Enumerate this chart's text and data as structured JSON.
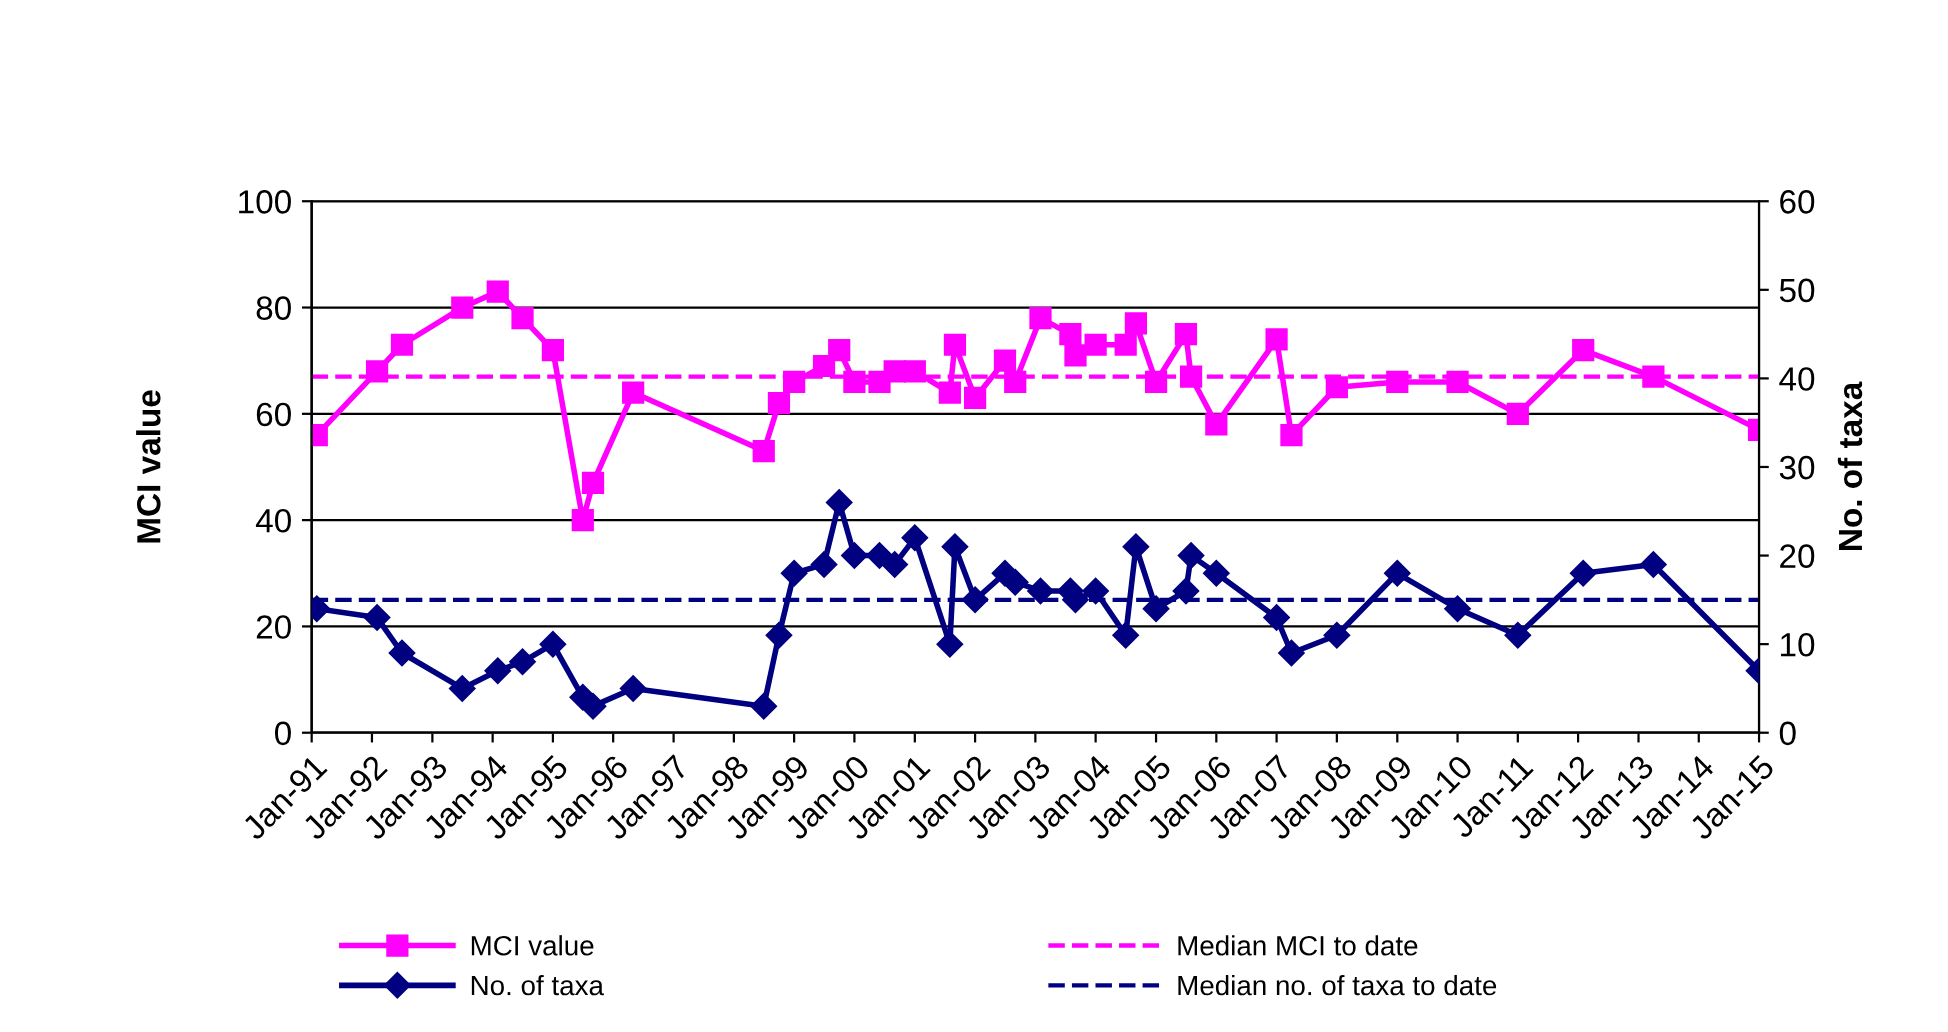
{
  "chart_data": {
    "type": "line",
    "ylabel": "MCI value",
    "y2label": "No. of taxa",
    "x": [
      "1991-02",
      "1992-02",
      "1992-07",
      "1993-07",
      "1994-02",
      "1994-07",
      "1995-01",
      "1995-07",
      "1995-09",
      "1996-05",
      "1998-07",
      "1998-10",
      "1999-01",
      "1999-07",
      "1999-10",
      "2000-01",
      "2000-06",
      "2000-09",
      "2001-01",
      "2001-08",
      "2001-09",
      "2002-01",
      "2002-07",
      "2002-09",
      "2003-02",
      "2003-08",
      "2003-09",
      "2004-01",
      "2004-07",
      "2004-09",
      "2005-01",
      "2005-07",
      "2005-08",
      "2006-01",
      "2007-01",
      "2007-04",
      "2008-01",
      "2009-01",
      "2010-01",
      "2011-01",
      "2012-02",
      "2013-04",
      "2015-01"
    ],
    "series": [
      {
        "name": "MCI value",
        "color": "#ff00ff",
        "marker": "square",
        "values": [
          56,
          68,
          73,
          80,
          83,
          78,
          72,
          40,
          47,
          64,
          53,
          62,
          66,
          69,
          72,
          66,
          66,
          68,
          68,
          64,
          73,
          63,
          70,
          66,
          78,
          75,
          71,
          73,
          73,
          77,
          66,
          75,
          67,
          58,
          74,
          56,
          65,
          66,
          66,
          60,
          72,
          67,
          57
        ]
      },
      {
        "name": "No. of taxa",
        "color": "#000080",
        "marker": "diamond",
        "axis": "y2",
        "values": [
          14,
          13,
          9,
          5,
          7,
          8,
          10,
          4,
          3,
          5,
          3,
          11,
          18,
          19,
          26,
          20,
          20,
          19,
          22,
          10,
          21,
          15,
          18,
          17,
          16,
          16,
          15,
          16,
          11,
          21,
          14,
          16,
          20,
          18,
          13,
          9,
          11,
          18,
          14,
          11,
          18,
          19,
          7
        ]
      }
    ],
    "ref_lines": [
      {
        "axis": "y",
        "value": 67,
        "label": "Median MCI to date",
        "color": "#ff00ff",
        "line_style": "dashed"
      },
      {
        "axis": "y2",
        "value": 15,
        "label": "Median no. of taxa to date",
        "color": "#000080",
        "line_style": "dashed"
      }
    ],
    "xlim": [
      "1991-01",
      "2015-01"
    ],
    "xticks": [
      {
        "value": "1991-01",
        "label": "Jan-91"
      },
      {
        "value": "1992-01",
        "label": "Jan-92"
      },
      {
        "value": "1993-01",
        "label": "Jan-93"
      },
      {
        "value": "1994-01",
        "label": "Jan-94"
      },
      {
        "value": "1995-01",
        "label": "Jan-95"
      },
      {
        "value": "1996-01",
        "label": "Jan-96"
      },
      {
        "value": "1997-01",
        "label": "Jan-97"
      },
      {
        "value": "1998-01",
        "label": "Jan-98"
      },
      {
        "value": "1999-01",
        "label": "Jan-99"
      },
      {
        "value": "2000-01",
        "label": "Jan-00"
      },
      {
        "value": "2001-01",
        "label": "Jan-01"
      },
      {
        "value": "2002-01",
        "label": "Jan-02"
      },
      {
        "value": "2003-01",
        "label": "Jan-03"
      },
      {
        "value": "2004-01",
        "label": "Jan-04"
      },
      {
        "value": "2005-01",
        "label": "Jan-05"
      },
      {
        "value": "2006-01",
        "label": "Jan-06"
      },
      {
        "value": "2007-01",
        "label": "Jan-07"
      },
      {
        "value": "2008-01",
        "label": "Jan-08"
      },
      {
        "value": "2009-01",
        "label": "Jan-09"
      },
      {
        "value": "2010-01",
        "label": "Jan-10"
      },
      {
        "value": "2011-01",
        "label": "Jan-11"
      },
      {
        "value": "2012-01",
        "label": "Jan-12"
      },
      {
        "value": "2013-01",
        "label": "Jan-13"
      },
      {
        "value": "2014-01",
        "label": "Jan-14"
      },
      {
        "value": "2015-01",
        "label": "Jan-15"
      }
    ],
    "ylim": [
      0,
      100
    ],
    "yticks": [
      0,
      20,
      40,
      60,
      80,
      100
    ],
    "y2lim": [
      0,
      60
    ],
    "y2ticks": [
      0,
      10,
      20,
      30,
      40,
      50,
      60
    ],
    "grid": "y",
    "legend": "bottom",
    "line_style": "solid"
  }
}
